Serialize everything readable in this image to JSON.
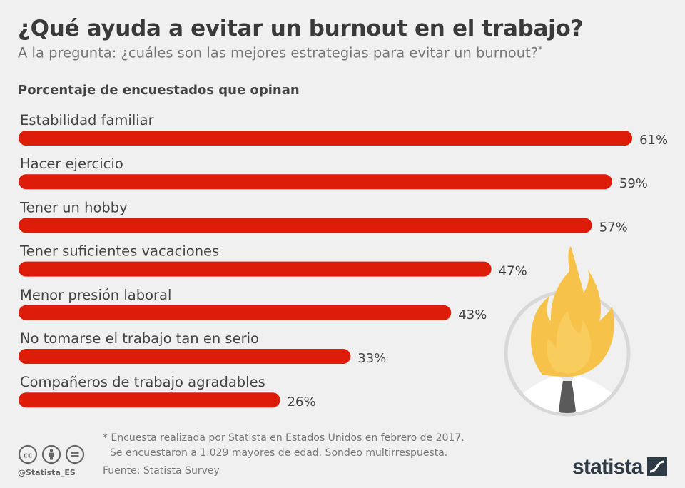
{
  "title": "¿Qué ayuda a evitar un burnout en el trabajo?",
  "subtitle": "A la pregunta: ¿cuáles son las mejores estrategias para evitar un burnout?",
  "subtitle_mark": "*",
  "axis_caption": "Porcentaje de encuestados  que opinan",
  "chart_data": {
    "type": "bar",
    "orientation": "horizontal",
    "categories": [
      "Estabilidad familiar",
      "Hacer ejercicio",
      "Tener un hobby",
      "Tener suficientes vacaciones",
      "Menor presión laboral",
      "No tomarse el trabajo tan en serio",
      "Compañeros de trabajo agradables"
    ],
    "values": [
      61,
      59,
      57,
      47,
      43,
      33,
      26
    ],
    "value_labels": [
      "61%",
      "59%",
      "57%",
      "47%",
      "43%",
      "33%",
      "26%"
    ],
    "unit": "%",
    "bar_color": "#dd1c0a",
    "grid": false
  },
  "footnote_line1": "* Encuesta realizada por Statista en Estados Unidos en febrero de 2017.",
  "footnote_line2": "Se encuestaron a 1.029 mayores de edad. Sondeo multirrespuesta.",
  "source": "Fuente: Statista Survey",
  "handle": "@Statista_ES",
  "brand": "statista",
  "icons": [
    "cc-icon",
    "attribution-icon",
    "no-derivatives-icon",
    "statista-logo-icon",
    "burnout-head-illustration"
  ]
}
